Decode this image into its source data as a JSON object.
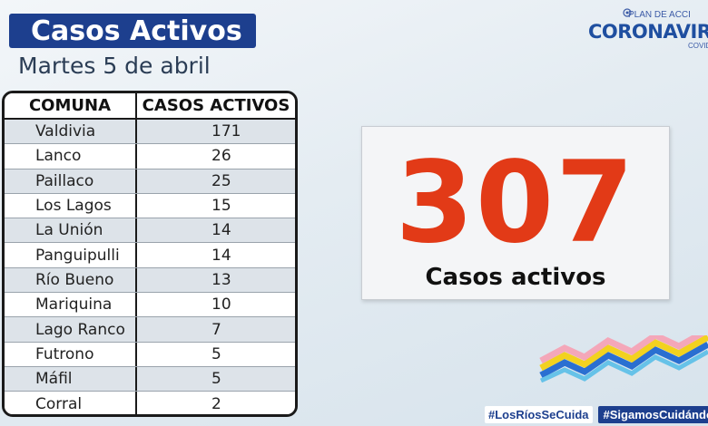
{
  "header": {
    "title": "Casos Activos",
    "date": "Martes 5 de abril"
  },
  "logo": {
    "plan": "PLAN DE ACCI",
    "brand": "CORONAVIRU",
    "suffix": "COVID"
  },
  "table": {
    "headers": [
      "COMUNA",
      "CASOS ACTIVOS"
    ],
    "rows": [
      {
        "comuna": "Valdivia",
        "casos": "171"
      },
      {
        "comuna": "Lanco",
        "casos": "26"
      },
      {
        "comuna": "Paillaco",
        "casos": "25"
      },
      {
        "comuna": "Los Lagos",
        "casos": "15"
      },
      {
        "comuna": "La Unión",
        "casos": "14"
      },
      {
        "comuna": "Panguipulli",
        "casos": "14"
      },
      {
        "comuna": "Río Bueno",
        "casos": "13"
      },
      {
        "comuna": "Mariquina",
        "casos": "10"
      },
      {
        "comuna": "Lago Ranco",
        "casos": "7"
      },
      {
        "comuna": "Futrono",
        "casos": "5"
      },
      {
        "comuna": "Máfil",
        "casos": "5"
      },
      {
        "comuna": "Corral",
        "casos": "2"
      }
    ]
  },
  "summary": {
    "total": "307",
    "label": "Casos activos"
  },
  "hashtags": [
    "#LosRíosSeCuida",
    "#SigamosCuidándon"
  ],
  "colors": {
    "navy": "#1d3f8e",
    "highlight_red": "#e23a17"
  }
}
